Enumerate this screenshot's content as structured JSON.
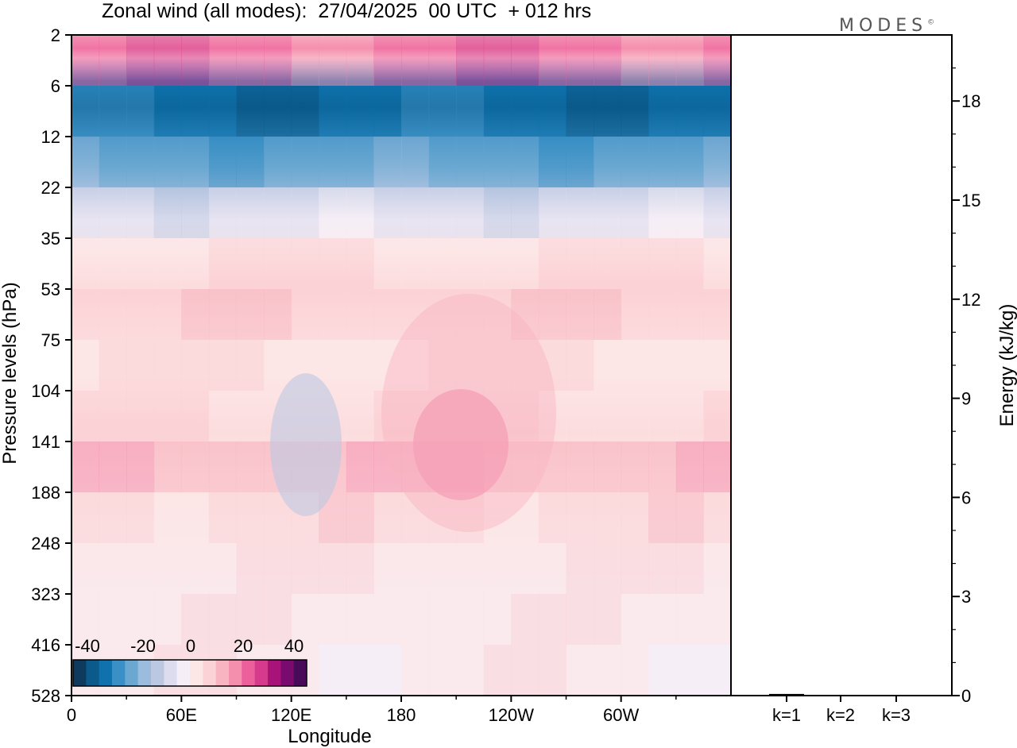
{
  "title": "Zonal wind (all modes):  27/04/2025  00 UTC  + 012 hrs",
  "logo": "MODES",
  "logo_mark": "©",
  "chart_data": [
    {
      "type": "heatmap",
      "xlabel": "Longitude",
      "ylabel": "Pressure levels (hPa)",
      "x_ticks": [
        "0",
        "60E",
        "120E",
        "180",
        "120W",
        "60W"
      ],
      "x_tick_degrees": [
        0,
        60,
        120,
        180,
        240,
        300
      ],
      "x_range": [
        0,
        360
      ],
      "y_ticks": [
        "2",
        "6",
        "12",
        "22",
        "35",
        "53",
        "75",
        "104",
        "141",
        "188",
        "248",
        "323",
        "416",
        "528"
      ],
      "colorbar": {
        "labels": [
          "-40",
          "-20",
          "0",
          "20",
          "40"
        ],
        "values": [
          -40,
          -20,
          0,
          20,
          40
        ],
        "colors": [
          "#0e3a5e",
          "#0b5a8a",
          "#0f72ad",
          "#3a8fc4",
          "#6aa8d2",
          "#9bbcdc",
          "#bcc8e2",
          "#dcdcee",
          "#f6eef6",
          "#fde6e6",
          "#fbd2d6",
          "#f8b4c0",
          "#f48fae",
          "#ec5f9b",
          "#d53a8c",
          "#a8137a",
          "#7a0b6e",
          "#4a0a5a"
        ]
      },
      "layers": [
        {
          "level": "2",
          "zonal_wind": 20
        },
        {
          "level": "6",
          "zonal_wind": -35
        },
        {
          "level": "12",
          "zonal_wind": -25
        },
        {
          "level": "22",
          "zonal_wind": -10
        },
        {
          "level": "35",
          "zonal_wind": 3
        },
        {
          "level": "53",
          "zonal_wind": 6
        },
        {
          "level": "75",
          "zonal_wind": 3
        },
        {
          "level": "104",
          "zonal_wind": 2
        },
        {
          "level": "141",
          "zonal_wind": 12
        },
        {
          "level": "188",
          "zonal_wind": 5
        },
        {
          "level": "248",
          "zonal_wind": 2
        },
        {
          "level": "323",
          "zonal_wind": 1
        },
        {
          "level": "416",
          "zonal_wind": 0
        },
        {
          "level": "528",
          "zonal_wind": 0
        }
      ]
    },
    {
      "type": "bar",
      "ylabel": "Energy (kJ/kg)",
      "categories": [
        "k=1",
        "k=2",
        "k=3"
      ],
      "values": [
        0.05,
        0.02,
        0.02
      ],
      "y_ticks": [
        "0",
        "3",
        "6",
        "9",
        "12",
        "15",
        "18"
      ],
      "y_tick_values": [
        0,
        3,
        6,
        9,
        12,
        15,
        18
      ],
      "ylim": [
        0,
        20
      ]
    }
  ]
}
